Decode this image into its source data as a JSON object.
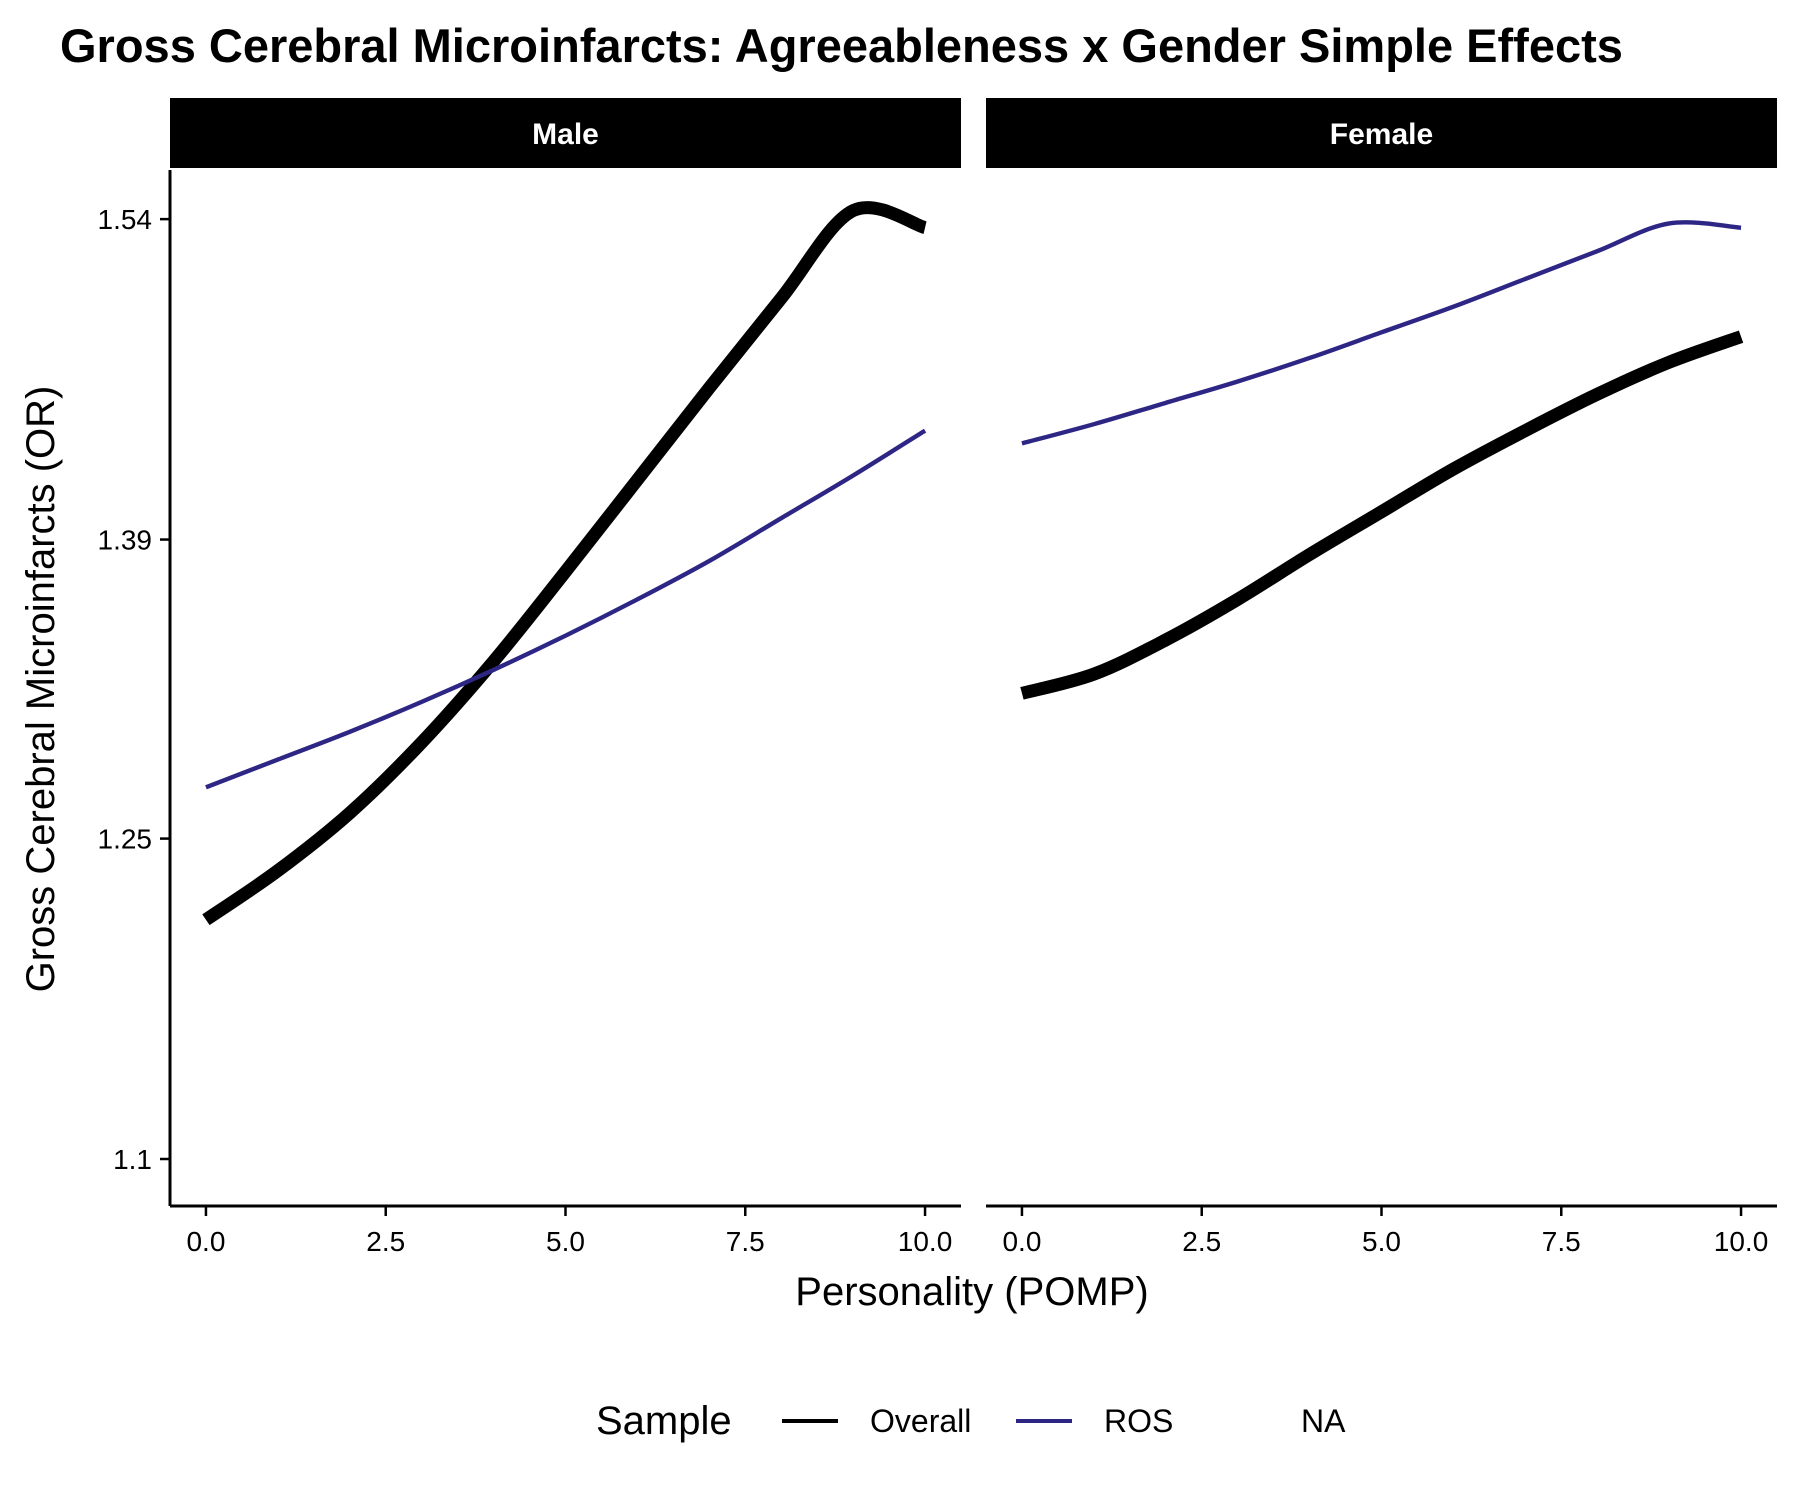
{
  "chart_data": {
    "type": "line",
    "title": "Gross Cerebral Microinfarcts: Agreeableness x Gender Simple Effects",
    "xlabel": "Personality (POMP)",
    "ylabel": "Gross Cerebral Microinfarcts (OR)",
    "x_ticks": [
      "0.0",
      "2.5",
      "5.0",
      "7.5",
      "10.0"
    ],
    "y_ticks": [
      "1.1",
      "1.25",
      "1.39",
      "1.54"
    ],
    "xlim": [
      -0.5,
      10.5
    ],
    "ylim": [
      1.078,
      1.563
    ],
    "y_tick_values": [
      1.1,
      1.25,
      1.39,
      1.54
    ],
    "x_tick_values": [
      0,
      2.5,
      5,
      7.5,
      10
    ],
    "grid": false,
    "legend_position": "bottom",
    "legend": {
      "title": "Sample",
      "entries": [
        {
          "label": "Overall",
          "color": "#000000"
        },
        {
          "label": "ROS",
          "color": "#2e2684"
        },
        {
          "label": "NA",
          "color": "none"
        }
      ]
    },
    "panels": [
      {
        "label": "Male",
        "series": [
          {
            "name": "Overall",
            "color": "#000000",
            "width": "thick",
            "x": [
              0,
              1,
              2,
              3,
              4,
              5,
              6,
              7,
              8,
              9,
              10
            ],
            "y": [
              1.212,
              1.235,
              1.262,
              1.295,
              1.333,
              1.375,
              1.418,
              1.461,
              1.503,
              1.544,
              1.536
            ]
          },
          {
            "name": "ROS",
            "color": "#2e2684",
            "width": "thin",
            "x": [
              0,
              1,
              2,
              3,
              4,
              5,
              6,
              7,
              8,
              9,
              10
            ],
            "y": [
              1.274,
              1.287,
              1.3,
              1.314,
              1.329,
              1.345,
              1.362,
              1.38,
              1.4,
              1.42,
              1.441
            ]
          }
        ]
      },
      {
        "label": "Female",
        "series": [
          {
            "name": "Overall",
            "color": "#000000",
            "width": "thick",
            "x": [
              0,
              1,
              2,
              3,
              4,
              5,
              6,
              7,
              8,
              9,
              10
            ],
            "y": [
              1.318,
              1.327,
              1.343,
              1.362,
              1.383,
              1.403,
              1.423,
              1.441,
              1.458,
              1.473,
              1.485
            ]
          },
          {
            "name": "ROS",
            "color": "#2e2684",
            "width": "thin",
            "x": [
              0,
              1,
              2,
              3,
              4,
              5,
              6,
              7,
              8,
              9,
              10
            ],
            "y": [
              1.435,
              1.444,
              1.454,
              1.464,
              1.475,
              1.487,
              1.499,
              1.512,
              1.525,
              1.538,
              1.536
            ]
          }
        ]
      }
    ]
  }
}
